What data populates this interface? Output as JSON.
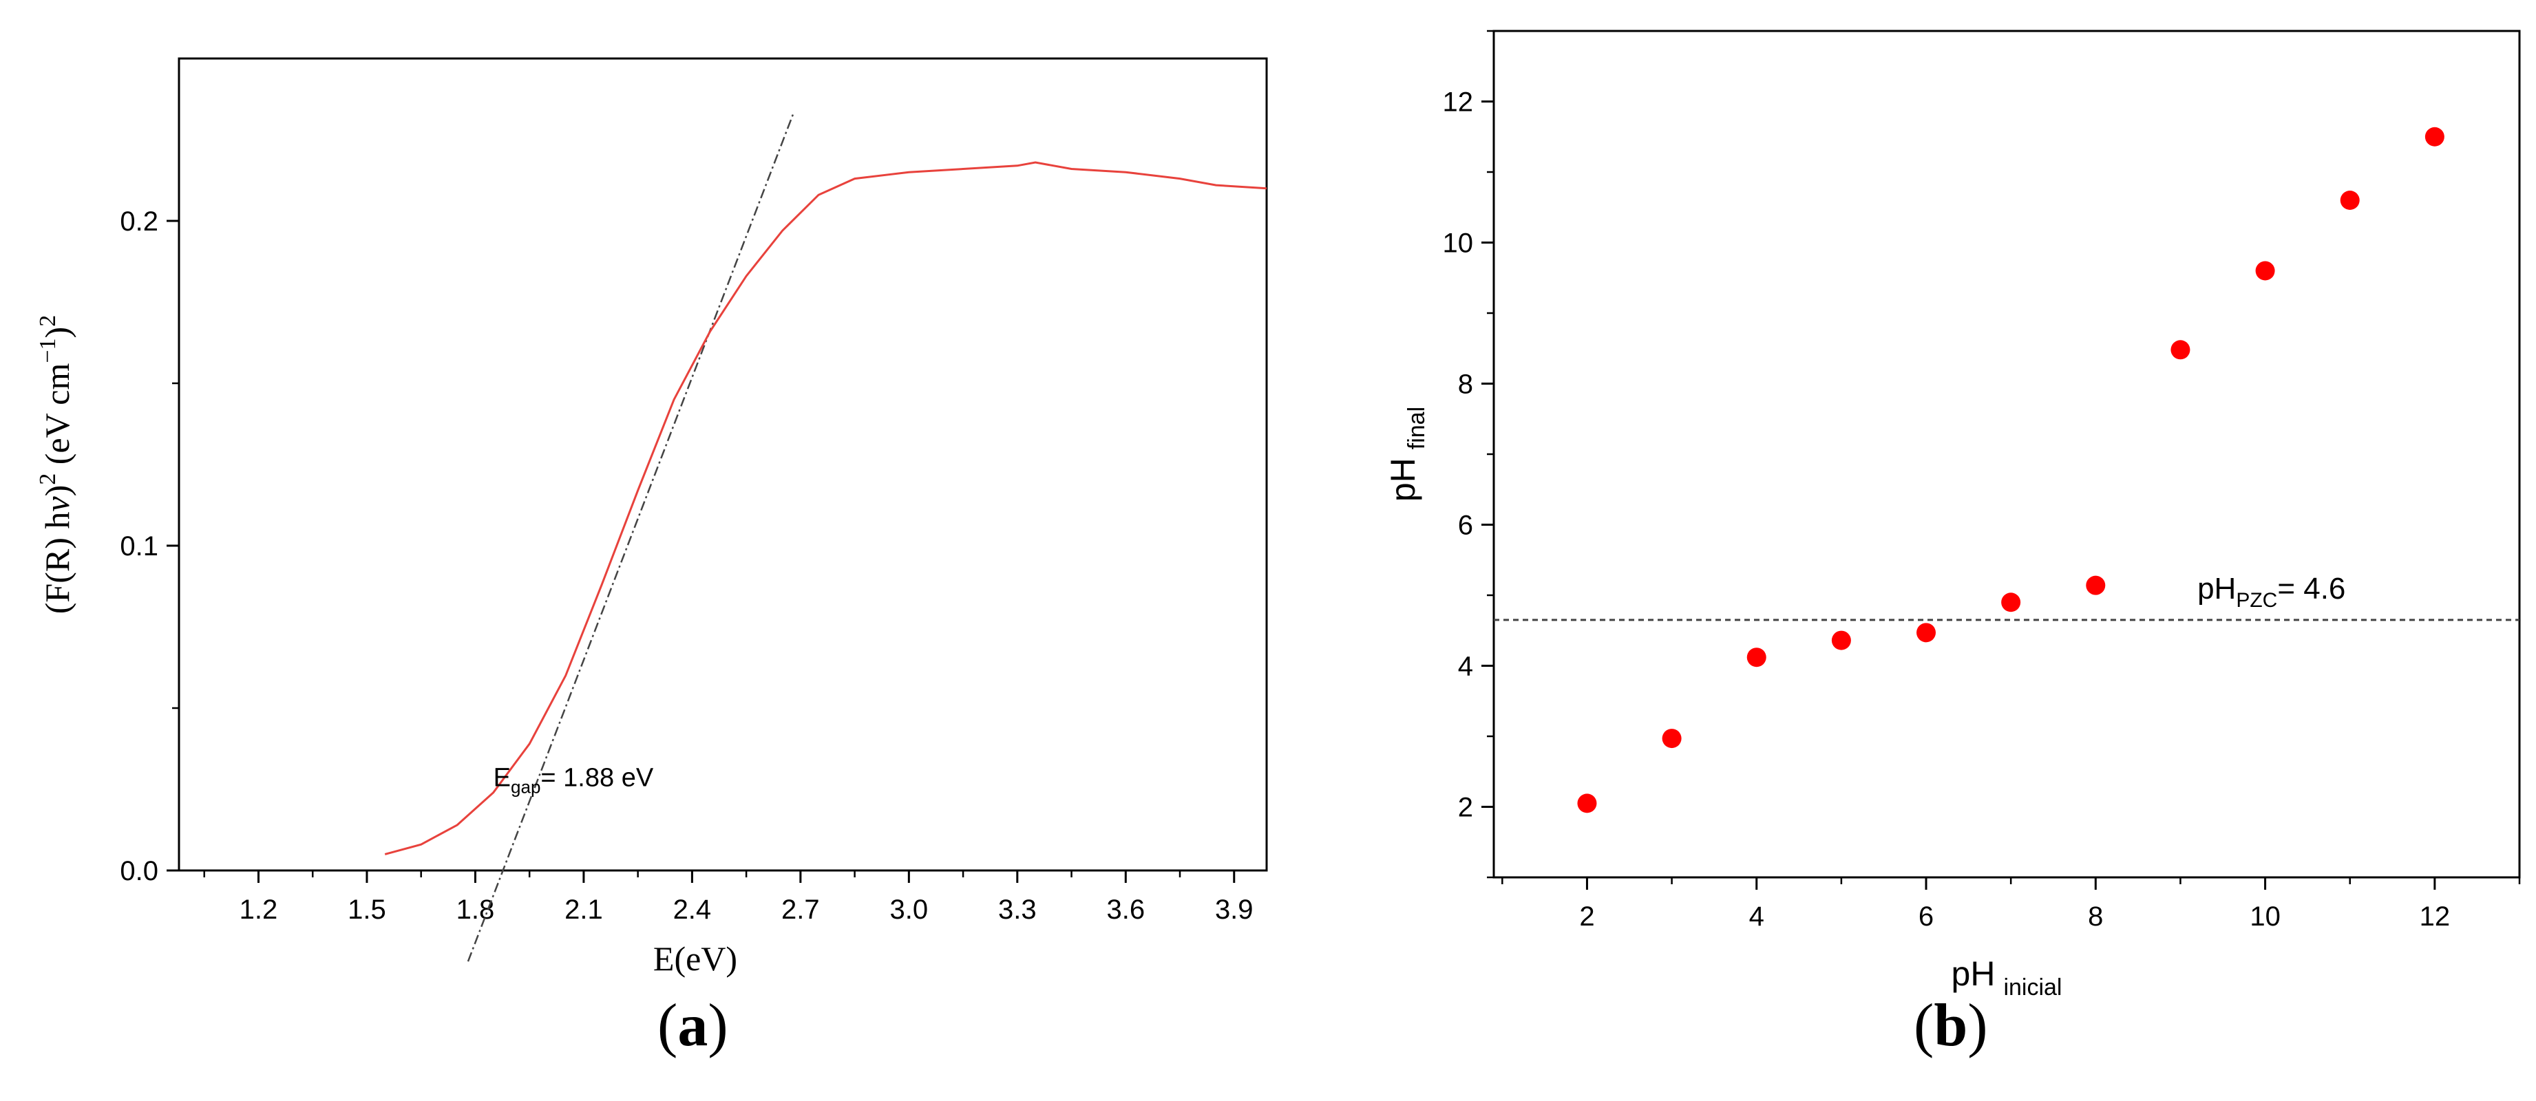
{
  "chart_data": [
    {
      "type": "line",
      "panel_label": "a",
      "xlabel": "E(eV)",
      "ylabel": {
        "text_1": "(F(R) h",
        "nu": "ν",
        "text_2": ")",
        "sup_1": "2",
        "text_3": " (eV cm",
        "sup_2": "−1",
        "text_4": ")",
        "sup_3": "2"
      },
      "xlim": [
        0.98,
        3.99
      ],
      "ylim": [
        0.0,
        0.25
      ],
      "x_ticks": [
        "1.2",
        "1.5",
        "1.8",
        "2.1",
        "2.4",
        "2.7",
        "3.0",
        "3.3",
        "3.6",
        "3.9"
      ],
      "y_ticks": [
        "0.0",
        "0.1",
        "0.2"
      ],
      "grid": false,
      "series": [
        {
          "color": "#e8423c",
          "x": [
            1.55,
            1.65,
            1.75,
            1.85,
            1.95,
            2.05,
            2.15,
            2.25,
            2.35,
            2.45,
            2.55,
            2.65,
            2.75,
            2.85,
            3.0,
            3.15,
            3.3,
            3.35,
            3.45,
            3.6,
            3.75,
            3.85,
            3.99
          ],
          "y": [
            0.005,
            0.008,
            0.014,
            0.024,
            0.039,
            0.06,
            0.088,
            0.117,
            0.145,
            0.166,
            0.183,
            0.197,
            0.208,
            0.213,
            0.215,
            0.216,
            0.217,
            0.218,
            0.216,
            0.215,
            0.213,
            0.211,
            0.21
          ]
        }
      ],
      "tangent_line": {
        "color": "#444444",
        "x": [
          1.78,
          2.68
        ],
        "y": [
          -0.028,
          0.233
        ]
      },
      "annotation": {
        "text": "E",
        "sub": "gap",
        "rest": "= 1.88 eV",
        "x": 1.85,
        "y": 0.026
      }
    },
    {
      "type": "scatter",
      "panel_label": "b",
      "xlabel": {
        "main": "pH",
        "sub": "inicial"
      },
      "ylabel": {
        "main": "pH",
        "sub": "final"
      },
      "xlim": [
        0.9,
        13.0
      ],
      "ylim": [
        1.0,
        13.0
      ],
      "x_ticks": [
        "2",
        "4",
        "6",
        "8",
        "10",
        "12"
      ],
      "y_ticks": [
        "2",
        "4",
        "6",
        "8",
        "10",
        "12"
      ],
      "grid": false,
      "series": [
        {
          "color": "#ff0000",
          "x": [
            2,
            3,
            4,
            5,
            6,
            7,
            8,
            9,
            10,
            11,
            12
          ],
          "y": [
            2.05,
            2.97,
            4.12,
            4.36,
            4.47,
            4.9,
            5.14,
            8.48,
            9.6,
            10.6,
            11.5
          ]
        }
      ],
      "reference_line": {
        "y": 4.65,
        "color": "#444444"
      },
      "annotation": {
        "text": "pH",
        "sub": "PZC",
        "rest": "= 4.6",
        "x": 9.2,
        "y": 4.95
      }
    }
  ]
}
